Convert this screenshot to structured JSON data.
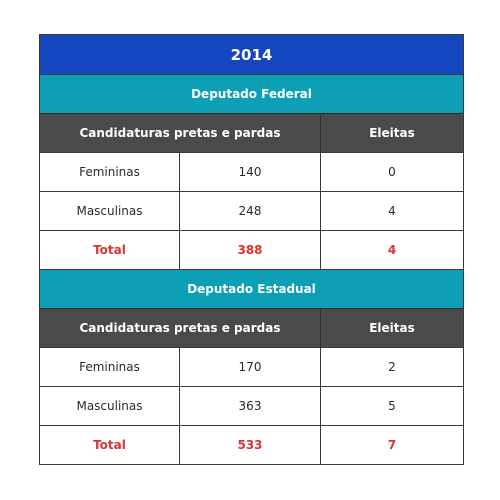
{
  "year": "2014",
  "sections": [
    {
      "title": "Deputado Federal",
      "header": {
        "col1": "Candidaturas pretas e pardas",
        "col2": "Eleitas"
      },
      "rows": [
        {
          "label": "Femininas",
          "candidates": "140",
          "elected": "0"
        },
        {
          "label": "Masculinas",
          "candidates": "248",
          "elected": "4"
        },
        {
          "label": "Total",
          "candidates": "388",
          "elected": "4"
        }
      ]
    },
    {
      "title": "Deputado Estadual",
      "header": {
        "col1": "Candidaturas pretas e pardas",
        "col2": "Eleitas"
      },
      "rows": [
        {
          "label": "Femininas",
          "candidates": "170",
          "elected": "2"
        },
        {
          "label": "Masculinas",
          "candidates": "363",
          "elected": "5"
        },
        {
          "label": "Total",
          "candidates": "533",
          "elected": "7"
        }
      ]
    }
  ],
  "colors": {
    "year_bg": "#1446c0",
    "section_bg": "#0d9fb5",
    "header_bg": "#4a4a4a",
    "total_text": "#d63535"
  }
}
